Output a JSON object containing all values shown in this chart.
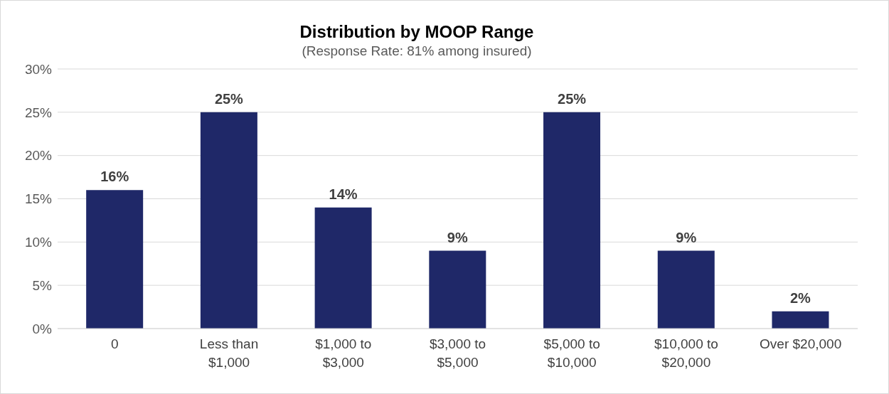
{
  "chart_data": {
    "type": "bar",
    "title": "Distribution by MOOP Range",
    "subtitle": "(Response Rate: 81% among insured)",
    "categories": [
      "0",
      "Less than $1,000",
      "$1,000 to $3,000",
      "$3,000 to $5,000",
      "$5,000 to $10,000",
      "$10,000 to $20,000",
      "Over $20,000"
    ],
    "values": [
      16,
      25,
      14,
      9,
      25,
      9,
      2
    ],
    "value_labels": [
      "16%",
      "25%",
      "14%",
      "9%",
      "25%",
      "9%",
      "2%"
    ],
    "color": "#1f2868",
    "ylim": [
      0,
      30
    ],
    "yticks": [
      {
        "value": 0,
        "label": "0%"
      },
      {
        "value": 5,
        "label": "5%"
      },
      {
        "value": 10,
        "label": "10%"
      },
      {
        "value": 15,
        "label": "15%"
      },
      {
        "value": 20,
        "label": "20%"
      },
      {
        "value": 25,
        "label": "25%"
      },
      {
        "value": 30,
        "label": "30%"
      }
    ],
    "grid": "y",
    "legend": false
  }
}
